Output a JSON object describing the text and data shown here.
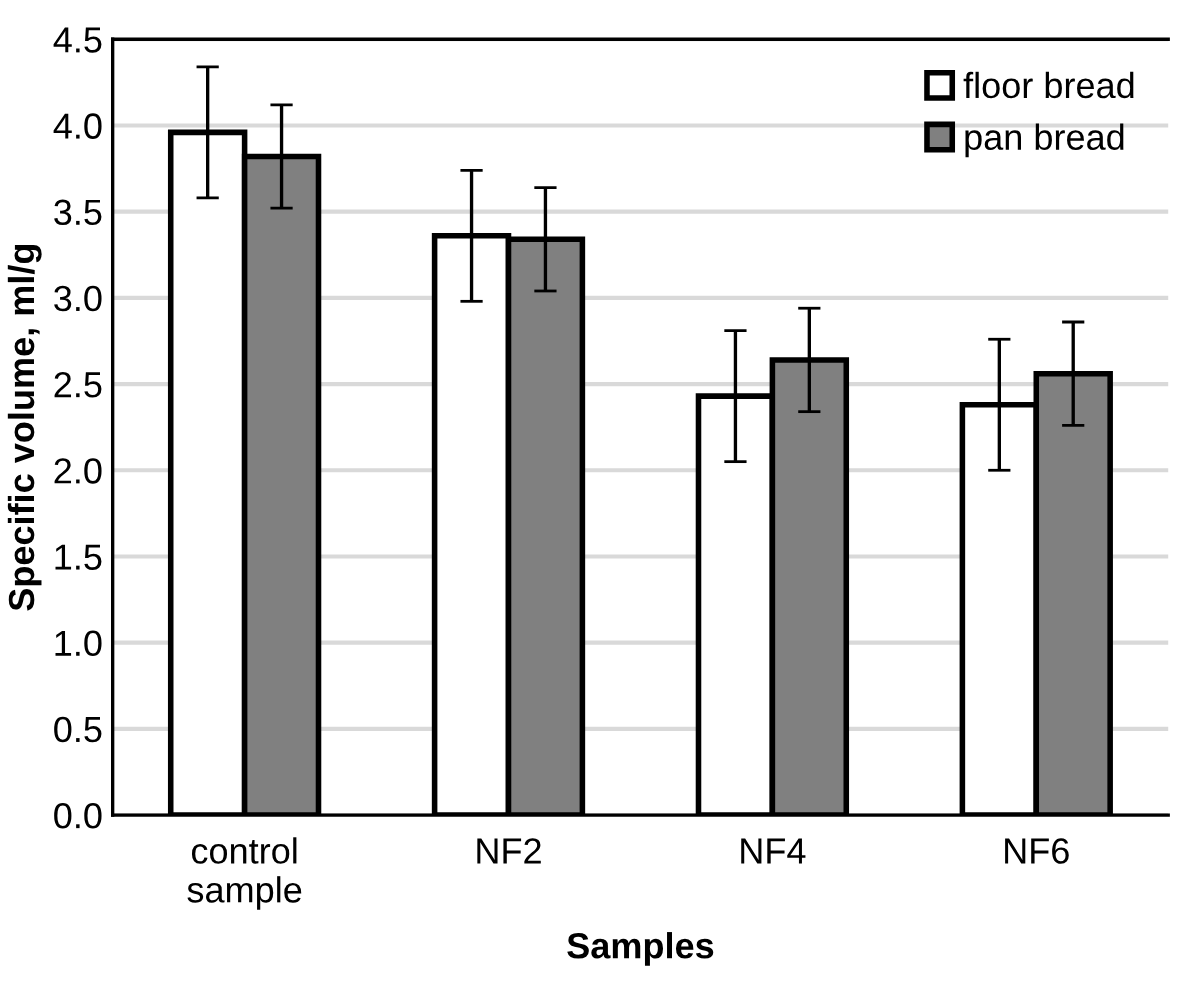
{
  "chart_data": {
    "type": "bar",
    "xlabel": "Samples",
    "ylabel": "Specific volume, ml/g",
    "categories": [
      "control\nsample",
      "NF2",
      "NF4",
      "NF6"
    ],
    "series": [
      {
        "name": "floor bread",
        "color": "#ffffff",
        "values": [
          3.96,
          3.36,
          2.43,
          2.38
        ],
        "errors": [
          0.38,
          0.38,
          0.38,
          0.38
        ]
      },
      {
        "name": "pan bread",
        "color": "#808080",
        "values": [
          3.82,
          3.34,
          2.64,
          2.56
        ],
        "errors": [
          0.3,
          0.3,
          0.3,
          0.3
        ]
      }
    ],
    "ylim": [
      0,
      4.5
    ],
    "yticks": [
      {
        "value": 0,
        "label": "0.0"
      },
      {
        "value": 0.5,
        "label": "0.5"
      },
      {
        "value": 1,
        "label": "1.0"
      },
      {
        "value": 1.5,
        "label": "1.5"
      },
      {
        "value": 2,
        "label": "2.0"
      },
      {
        "value": 2.5,
        "label": "2.5"
      },
      {
        "value": 3,
        "label": "3.0"
      },
      {
        "value": 3.5,
        "label": "3.5"
      },
      {
        "value": 4,
        "label": "4.0"
      },
      {
        "value": 4.5,
        "label": "4.5"
      }
    ],
    "grid": "y",
    "legend": "top right"
  }
}
